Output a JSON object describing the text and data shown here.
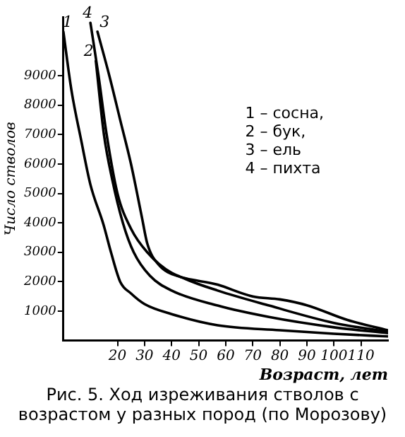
{
  "chart_data": {
    "type": "line",
    "title": "Рис. 5. Ход изреживания стволов с возрастом у разных пород (по Морозову)",
    "xlabel": "Возраст, лет",
    "ylabel": "Число стволов",
    "xlim": [
      0,
      120
    ],
    "xticks": [
      20,
      30,
      40,
      50,
      60,
      70,
      80,
      90,
      100,
      110
    ],
    "ylim": [
      0,
      11000
    ],
    "yticks": [
      1000,
      2000,
      3000,
      4000,
      5000,
      6000,
      7000,
      8000,
      9000
    ],
    "grid": false,
    "legend": false,
    "marker": "none",
    "line_style": "solid",
    "annotations": [
      "1 – сосна,",
      "2 – бук,",
      "3 – ель",
      "4 – пихта"
    ],
    "series": [
      {
        "name": "1",
        "color": "#000000",
        "x": [
          0,
          3,
          6.6,
          10,
          14.8,
          17.6,
          21,
          25,
          30,
          40,
          57,
          80,
          100,
          120
        ],
        "values": [
          10500,
          8500,
          6800,
          5300,
          3950,
          3000,
          2000,
          1600,
          1240,
          900,
          520,
          350,
          230,
          140
        ]
      },
      {
        "name": "2",
        "color": "#000000",
        "x": [
          12,
          15,
          18,
          22,
          26,
          32,
          40,
          57,
          76,
          100,
          120
        ],
        "values": [
          9500,
          7000,
          5500,
          4000,
          3000,
          2200,
          1700,
          1190,
          800,
          450,
          250
        ]
      },
      {
        "name": "3",
        "color": "#000000",
        "x": [
          12.6,
          17,
          21,
          25,
          29,
          31,
          35,
          45,
          57,
          76,
          100,
          120
        ],
        "values": [
          10500,
          9000,
          7500,
          6000,
          4200,
          3300,
          2600,
          2100,
          1700,
          1190,
          600,
          300
        ]
      },
      {
        "name": "4",
        "color": "#000000",
        "x": [
          10,
          13,
          16,
          20,
          25,
          31,
          40,
          57,
          70,
          80,
          90,
          105,
          120
        ],
        "values": [
          10800,
          9000,
          7000,
          5000,
          3800,
          3000,
          2300,
          1900,
          1500,
          1400,
          1200,
          700,
          350
        ]
      }
    ]
  }
}
